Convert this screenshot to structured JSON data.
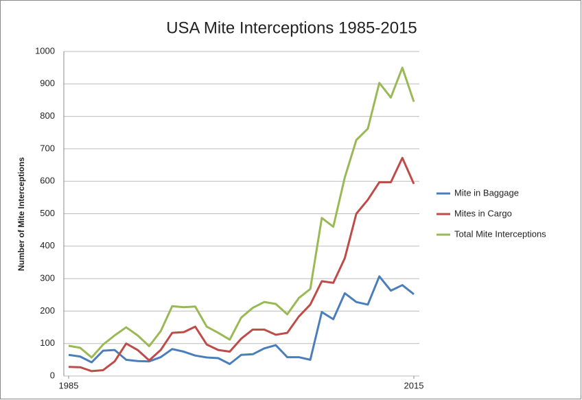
{
  "chart_data": {
    "type": "line",
    "title": "USA Mite Interceptions 1985-2015",
    "y_label": "Number of Mite Interceptions",
    "x": [
      1985,
      1986,
      1987,
      1988,
      1989,
      1990,
      1991,
      1992,
      1993,
      1994,
      1995,
      1996,
      1997,
      1998,
      1999,
      2000,
      2001,
      2002,
      2003,
      2004,
      2005,
      2006,
      2007,
      2008,
      2009,
      2010,
      2011,
      2012,
      2013,
      2014,
      2015
    ],
    "xlim": [
      1985,
      2015
    ],
    "xticks": [
      1985,
      2015
    ],
    "ylim": [
      0,
      1000
    ],
    "yticks": [
      0,
      100,
      200,
      300,
      400,
      500,
      600,
      700,
      800,
      900,
      1000
    ],
    "grid": true,
    "legend": "right",
    "series": [
      {
        "name": "Mite in Baggage",
        "color": "#4a7ebb",
        "values": [
          65,
          60,
          42,
          78,
          80,
          50,
          46,
          45,
          58,
          83,
          75,
          63,
          57,
          55,
          37,
          65,
          67,
          85,
          95,
          58,
          58,
          50,
          197,
          175,
          255,
          228,
          220,
          307,
          263,
          280,
          252
        ]
      },
      {
        "name": "Mites in Cargo",
        "color": "#be4b48",
        "values": [
          28,
          27,
          15,
          18,
          45,
          100,
          80,
          48,
          80,
          133,
          135,
          152,
          97,
          80,
          75,
          115,
          143,
          143,
          127,
          133,
          183,
          220,
          292,
          287,
          363,
          500,
          543,
          597,
          597,
          672,
          592
        ]
      },
      {
        "name": "Total Mite Interceptions",
        "color": "#98b954",
        "values": [
          93,
          87,
          57,
          97,
          125,
          150,
          125,
          92,
          138,
          215,
          212,
          214,
          152,
          133,
          112,
          180,
          210,
          228,
          222,
          190,
          240,
          268,
          487,
          460,
          612,
          727,
          762,
          903,
          858,
          950,
          845
        ]
      }
    ]
  }
}
